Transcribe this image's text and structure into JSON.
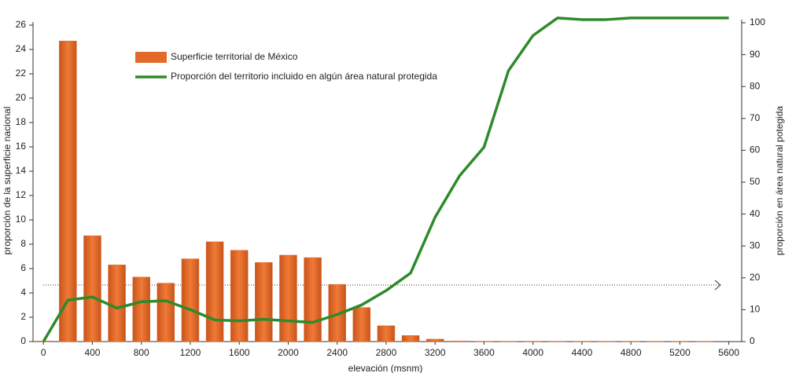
{
  "chart_data": {
    "type": "bar-line",
    "xlabel": "elevación (msnm)",
    "ylabel": "proporción de la superficie nacional",
    "y2label": "proporción en área natural potegida",
    "xlim": [
      -85,
      5705
    ],
    "xticks": [
      0,
      400,
      800,
      1200,
      1600,
      2000,
      2400,
      2800,
      3200,
      3600,
      4000,
      4400,
      4800,
      5200,
      5600
    ],
    "ylim": [
      0,
      26
    ],
    "yticks": [
      0,
      2,
      4,
      6,
      8,
      10,
      12,
      14,
      16,
      18,
      20,
      22,
      24,
      26
    ],
    "y2lim": [
      0,
      100
    ],
    "y2ticks": [
      0,
      10,
      20,
      30,
      40,
      50,
      60,
      70,
      80,
      90,
      100
    ],
    "legend": "top-left",
    "series": [
      {
        "name": "Superficie territorial de México",
        "type": "bar",
        "color": "#e2692a",
        "x": [
          0,
          200,
          400,
          600,
          800,
          1000,
          1200,
          1400,
          1600,
          1800,
          2000,
          2200,
          2400,
          2600,
          2800,
          3000,
          3200,
          3400,
          3600,
          3800,
          4000,
          4200,
          4400,
          4600,
          4800,
          5000,
          5200,
          5400
        ],
        "values": [
          0.05,
          24.7,
          8.7,
          6.3,
          5.3,
          4.8,
          6.8,
          8.2,
          7.5,
          6.5,
          7.1,
          6.9,
          4.7,
          2.8,
          1.3,
          0.5,
          0.2,
          0.05,
          0.03,
          0.03,
          0.03,
          0.03,
          0.03,
          0.03,
          0.03,
          0.03,
          0.03,
          0.03
        ]
      },
      {
        "name": "Proporción del territorio incluido en algún área natural protegida",
        "type": "line",
        "color": "#2e8a2a",
        "axis": "y2",
        "x": [
          0,
          200,
          400,
          600,
          800,
          1000,
          1200,
          1400,
          1600,
          1800,
          2000,
          2200,
          2400,
          2600,
          2800,
          3000,
          3200,
          3400,
          3600,
          3800,
          4000,
          4200,
          4400,
          4600,
          4800,
          5000,
          5200,
          5400,
          5600
        ],
        "values": [
          0,
          13,
          14,
          10.5,
          12.5,
          12.8,
          10,
          6.8,
          6.5,
          7,
          6.5,
          6,
          8.5,
          11.5,
          16,
          21.5,
          39,
          52,
          61,
          85,
          96,
          101.5,
          101,
          101,
          101.5,
          101.5,
          101.5,
          101.5,
          101.5
        ]
      }
    ]
  }
}
